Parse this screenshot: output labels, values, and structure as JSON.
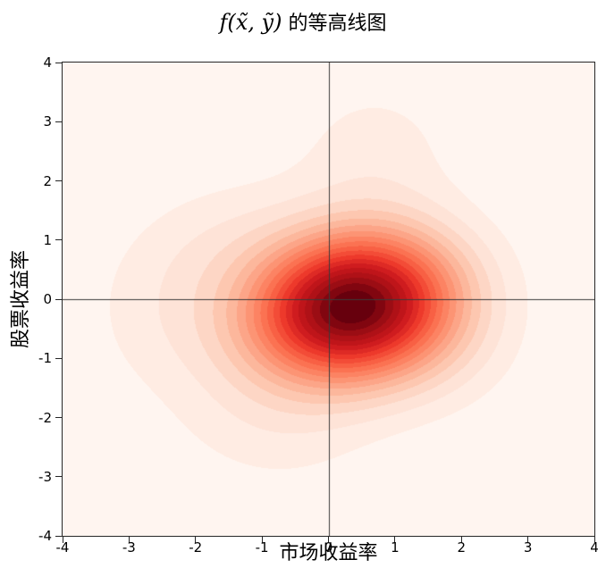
{
  "title": {
    "math": "f(x̃, ỹ)",
    "suffix": " 的等高线图"
  },
  "chart_data": {
    "type": "contour",
    "title": "f(x̃, ỹ) 的等高线图",
    "xlabel": "市场收益率",
    "ylabel": "股票收益率",
    "xlim": [
      -4,
      4
    ],
    "ylim": [
      -4,
      4
    ],
    "x_ticks": [
      -4,
      -3,
      -2,
      -1,
      0,
      1,
      2,
      3,
      4
    ],
    "y_ticks": [
      -4,
      -3,
      -2,
      -1,
      0,
      1,
      2,
      3,
      4
    ],
    "grid": false,
    "legend": "none",
    "colormap": "Reds",
    "colormap_stops": [
      "#fff5f0",
      "#fee0d2",
      "#fcbba1",
      "#fc9272",
      "#fb6a4a",
      "#ef3b2c",
      "#cb181d",
      "#a50f15",
      "#67000d"
    ],
    "levels": 20,
    "crosshair": {
      "x": 0,
      "y": 0,
      "color": "#3a3a3a"
    },
    "peak": {
      "x": 0.35,
      "y": -0.12
    },
    "density_components": [
      {
        "x": 0.35,
        "y": -0.12,
        "sx": 1.05,
        "sy": 0.85,
        "rho": 0.12,
        "w": 1.0
      },
      {
        "x": 0.7,
        "y": 2.5,
        "sx": 0.9,
        "sy": 0.9,
        "rho": 0.0,
        "w": 0.07
      },
      {
        "x": -1.7,
        "y": 1.0,
        "sx": 1.0,
        "sy": 0.8,
        "rho": 0.2,
        "w": 0.07
      },
      {
        "x": -2.5,
        "y": -0.4,
        "sx": 0.85,
        "sy": 0.9,
        "rho": 0.0,
        "w": 0.06
      },
      {
        "x": -0.9,
        "y": -2.1,
        "sx": 1.1,
        "sy": 0.85,
        "rho": -0.1,
        "w": 0.07
      },
      {
        "x": 1.6,
        "y": -0.9,
        "sx": 0.9,
        "sy": 0.8,
        "rho": 0.0,
        "w": 0.06
      }
    ]
  }
}
